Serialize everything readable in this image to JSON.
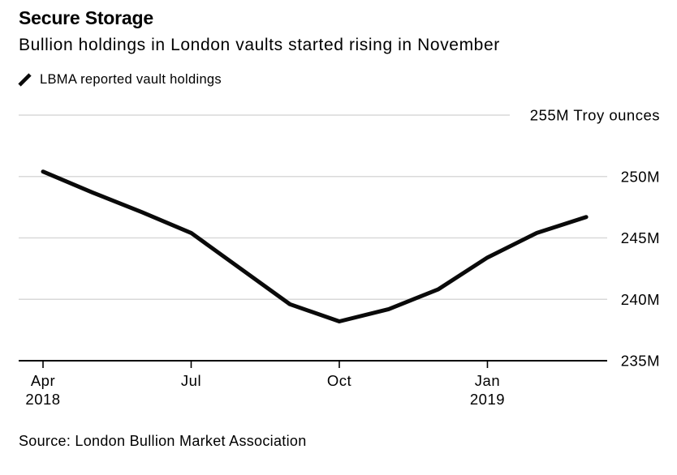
{
  "header": {
    "title": "Secure Storage",
    "subtitle": "Bullion holdings in London vaults started rising in November"
  },
  "legend": {
    "series_label": "LBMA reported vault holdings",
    "marker": "line-slash-icon"
  },
  "source": {
    "text": "Source: London Bullion Market Association"
  },
  "colors": {
    "text": "#000000",
    "gridline": "#d9d9d9",
    "axis": "#000000",
    "series": "#0a0a0a",
    "background": "#ffffff"
  },
  "chart_data": {
    "type": "line",
    "title": "Secure Storage",
    "subtitle": "Bullion holdings in London vaults started rising in November",
    "ylabel": "Troy ounces (millions)",
    "unit_note": "values in millions of troy ounces",
    "x": [
      "Apr 2018",
      "May 2018",
      "Jun 2018",
      "Jul 2018",
      "Aug 2018",
      "Sep 2018",
      "Oct 2018",
      "Nov 2018",
      "Dec 2018",
      "Jan 2019",
      "Feb 2019",
      "Mar 2019"
    ],
    "series": [
      {
        "name": "LBMA reported vault holdings",
        "color": "#0a0a0a",
        "values": [
          250.4,
          248.7,
          247.1,
          245.4,
          242.5,
          239.6,
          238.2,
          239.2,
          240.8,
          243.4,
          245.4,
          246.7
        ]
      }
    ],
    "ylim": [
      235,
      255
    ],
    "yticks": [
      {
        "value": 255,
        "label": "255M Troy ounces",
        "short": true
      },
      {
        "value": 250,
        "label": "250M"
      },
      {
        "value": 245,
        "label": "245M"
      },
      {
        "value": 240,
        "label": "240M"
      },
      {
        "value": 235,
        "label": "235M"
      }
    ],
    "xticks": [
      {
        "month_index": 0,
        "label": "Apr",
        "sublabel": "2018"
      },
      {
        "month_index": 3,
        "label": "Jul"
      },
      {
        "month_index": 6,
        "label": "Oct"
      },
      {
        "month_index": 9,
        "label": "Jan",
        "sublabel": "2019"
      }
    ],
    "grid": "horizontal",
    "legend_position": "top-left"
  }
}
